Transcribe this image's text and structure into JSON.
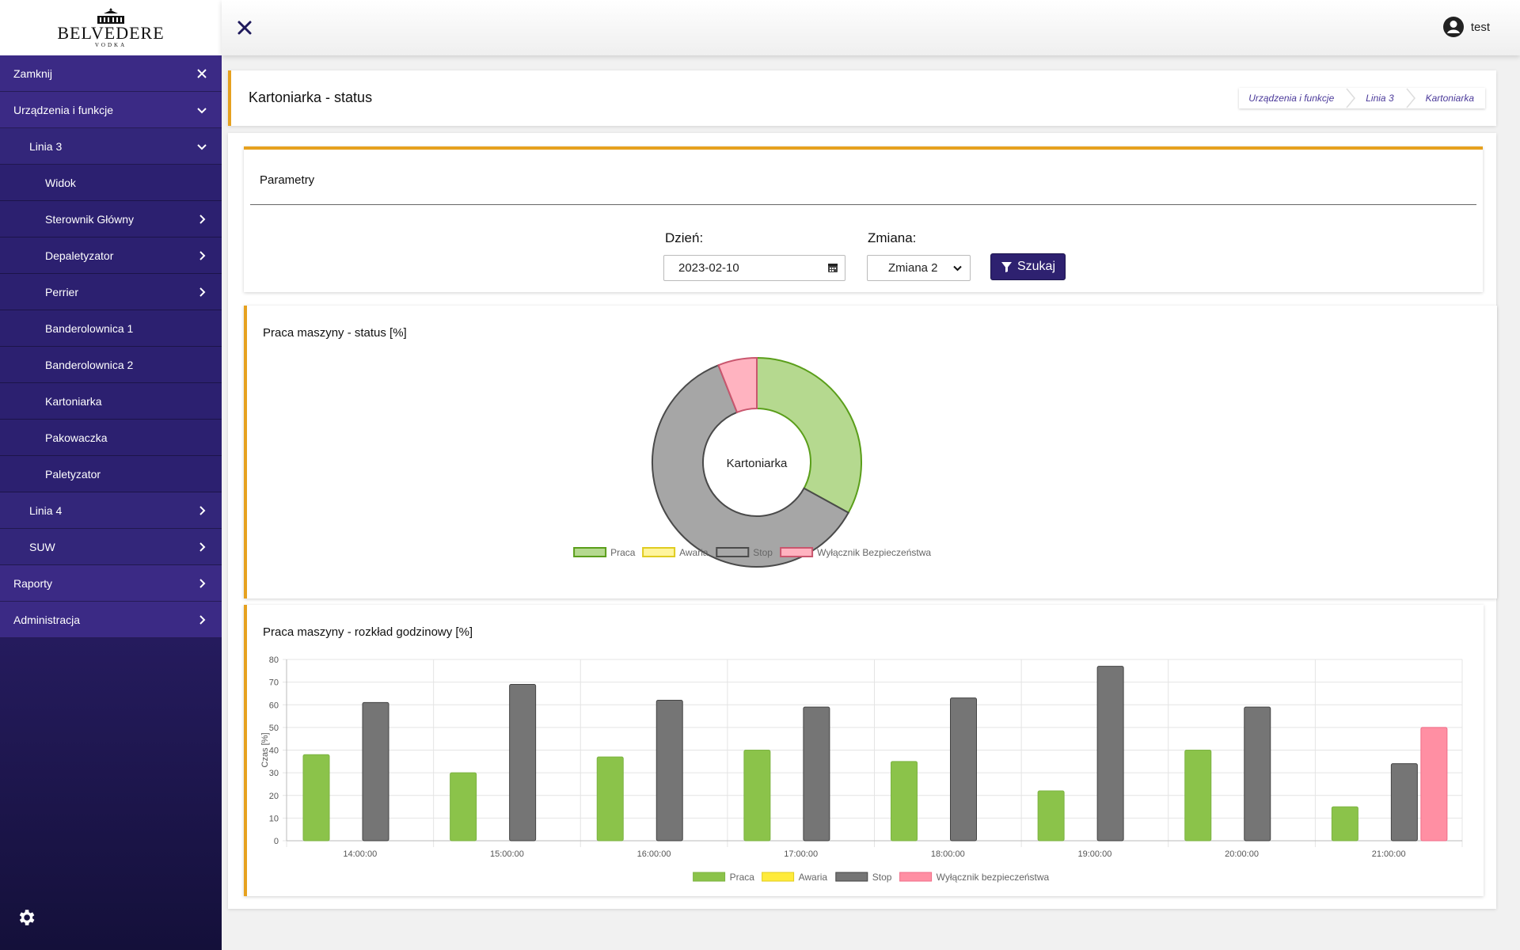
{
  "brand": {
    "name": "BELVEDERE",
    "sub": "VODKA"
  },
  "sidebar": {
    "items": [
      {
        "label": "Zamknij",
        "level": 0,
        "icon": "close-icon"
      },
      {
        "label": "Urządzenia i funkcje",
        "level": 0,
        "icon": "chevron-down-icon"
      },
      {
        "label": "Linia 3",
        "level": 1,
        "icon": "chevron-down-icon"
      },
      {
        "label": "Widok",
        "level": 2,
        "icon": ""
      },
      {
        "label": "Sterownik Główny",
        "level": 2,
        "icon": "chevron-right-icon"
      },
      {
        "label": "Depaletyzator",
        "level": 2,
        "icon": "chevron-right-icon"
      },
      {
        "label": "Perrier",
        "level": 2,
        "icon": "chevron-right-icon"
      },
      {
        "label": "Banderolownica 1",
        "level": 2,
        "icon": ""
      },
      {
        "label": "Banderolownica 2",
        "level": 2,
        "icon": ""
      },
      {
        "label": "Kartoniarka",
        "level": 2,
        "icon": ""
      },
      {
        "label": "Pakowaczka",
        "level": 2,
        "icon": ""
      },
      {
        "label": "Paletyzator",
        "level": 2,
        "icon": ""
      },
      {
        "label": "Linia 4",
        "level": 1,
        "icon": "chevron-right-icon"
      },
      {
        "label": "SUW",
        "level": 1,
        "icon": "chevron-right-icon"
      },
      {
        "label": "Raporty",
        "level": 0,
        "icon": "chevron-right-icon"
      },
      {
        "label": "Administracja",
        "level": 0,
        "icon": "chevron-right-icon"
      }
    ],
    "settings_icon": "gear-icon"
  },
  "topbar": {
    "user_name": "test"
  },
  "header": {
    "title": "Kartoniarka - status",
    "breadcrumb": [
      "Urządzenia i funkcje",
      "Linia 3",
      "Kartoniarka"
    ]
  },
  "params": {
    "title": "Parametry",
    "day_label": "Dzień:",
    "day_value": "2023-02-10",
    "shift_label": "Zmiana:",
    "shift_value": "Zmiana 2",
    "search_label": "Szukaj"
  },
  "colors": {
    "accent": "#e6a11f",
    "brand": "#2e2170",
    "praca": "#8bc34a",
    "awaria": "#ffeb3b",
    "stop": "#757575",
    "wylacznik": "#ff8fa3"
  },
  "chart_data": [
    {
      "type": "pie",
      "title": "Praca maszyny - status [%]",
      "center_label": "Kartoniarka",
      "categories": [
        "Praca",
        "Awaria",
        "Stop",
        "Wyłącznik Bezpieczeństwa"
      ],
      "values": [
        33,
        0,
        61,
        6
      ],
      "legend": "bottom"
    },
    {
      "type": "bar",
      "title": "Praca maszyny - rozkład godzinowy [%]",
      "xlabel": "",
      "ylabel": "Czas [%]",
      "ylim": [
        0,
        80
      ],
      "yticks": [
        0,
        10,
        20,
        30,
        40,
        50,
        60,
        70,
        80
      ],
      "categories": [
        "14:00:00",
        "15:00:00",
        "16:00:00",
        "17:00:00",
        "18:00:00",
        "19:00:00",
        "20:00:00",
        "21:00:00"
      ],
      "series": [
        {
          "name": "Praca",
          "values": [
            38,
            30,
            37,
            40,
            35,
            22,
            40,
            15
          ]
        },
        {
          "name": "Awaria",
          "values": [
            0,
            0,
            0,
            0,
            0,
            0,
            0,
            0
          ]
        },
        {
          "name": "Stop",
          "values": [
            61,
            69,
            62,
            59,
            63,
            77,
            59,
            34
          ]
        },
        {
          "name": "Wyłącznik bezpieczeństwa",
          "values": [
            0,
            0,
            0,
            0,
            0,
            0,
            0,
            50
          ]
        }
      ],
      "legend": "bottom",
      "grid": true
    }
  ]
}
